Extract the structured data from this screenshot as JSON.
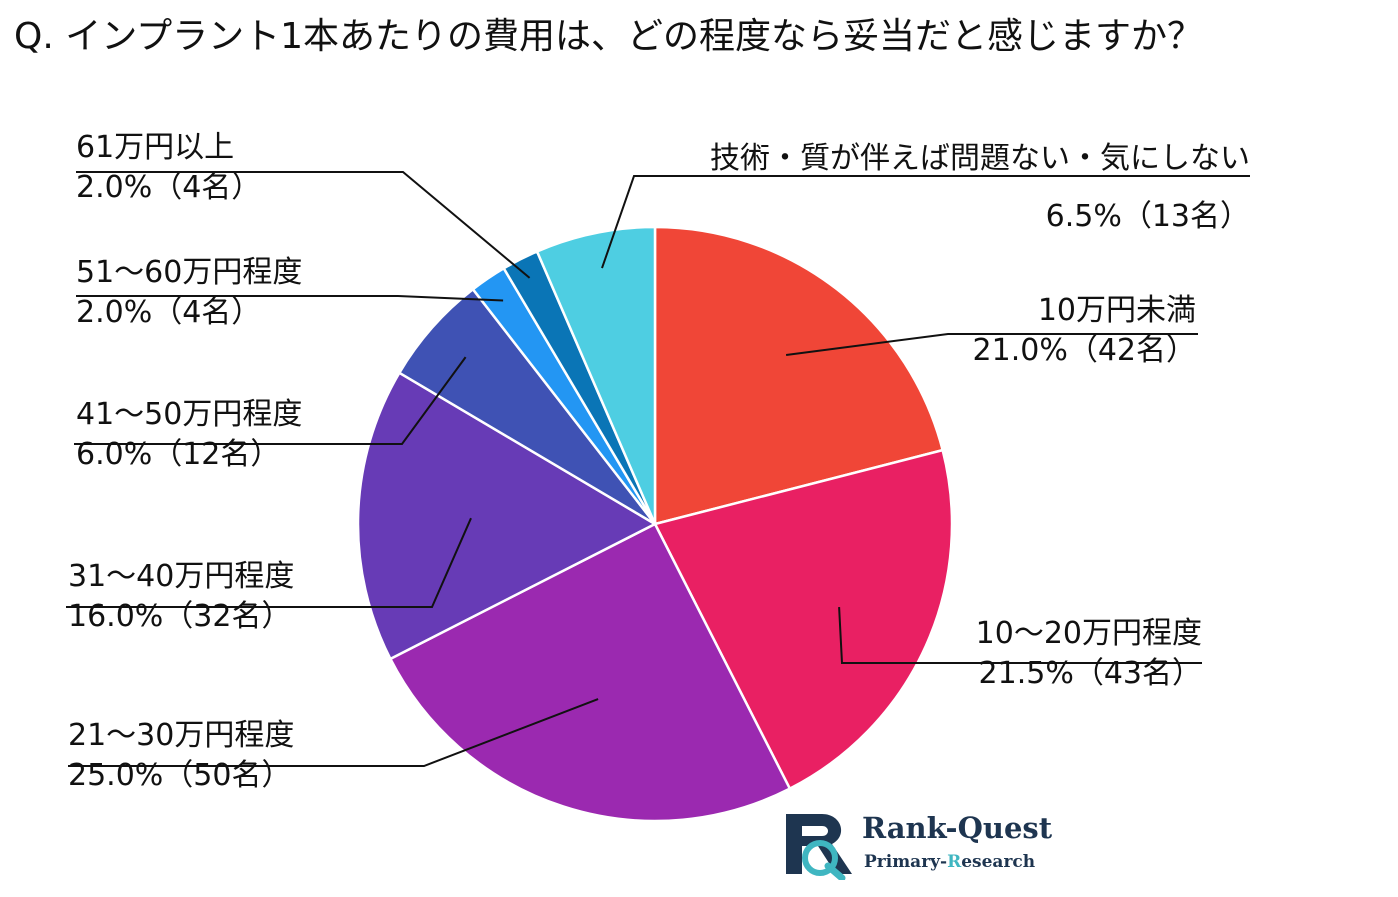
{
  "title": "Q. インプラント1本あたりの費用は、どの程度なら妥当だと感じますか？",
  "chart_data": {
    "type": "pie",
    "title": "Q. インプラント1本あたりの費用は、どの程度なら妥当だと感じますか？",
    "start": "12 o'clock, clockwise",
    "slices": [
      {
        "label": "10万円未満",
        "percent": 21.0,
        "count": 42,
        "value_text": "21.0%（42名）",
        "color": "#f04637"
      },
      {
        "label": "10〜20万円程度",
        "percent": 21.5,
        "count": 43,
        "value_text": "21.5%（43名）",
        "color": "#e92063"
      },
      {
        "label": "21〜30万円程度",
        "percent": 25.0,
        "count": 50,
        "value_text": "25.0%（50名）",
        "color": "#9b29b0"
      },
      {
        "label": "31〜40万円程度",
        "percent": 16.0,
        "count": 32,
        "value_text": "16.0%（32名）",
        "color": "#673bb6"
      },
      {
        "label": "41〜50万円程度",
        "percent": 6.0,
        "count": 12,
        "value_text": "6.0%（12名）",
        "color": "#3f52b4"
      },
      {
        "label": "51〜60万円程度",
        "percent": 2.0,
        "count": 4,
        "value_text": "2.0%（4名）",
        "color": "#2396f3"
      },
      {
        "label": "61万円以上",
        "percent": 2.0,
        "count": 4,
        "value_text": "2.0%（4名）",
        "color": "#0a75b6"
      },
      {
        "label": "技術・質が伴えば問題ない・気にしない",
        "percent": 6.5,
        "count": 13,
        "value_text": "6.5%（13名）",
        "color": "#4ecee2"
      }
    ]
  },
  "logo": {
    "name": "Rank-Quest",
    "sub_main": "Primary-",
    "sub_accent": "R",
    "sub_rest": "esearch"
  }
}
